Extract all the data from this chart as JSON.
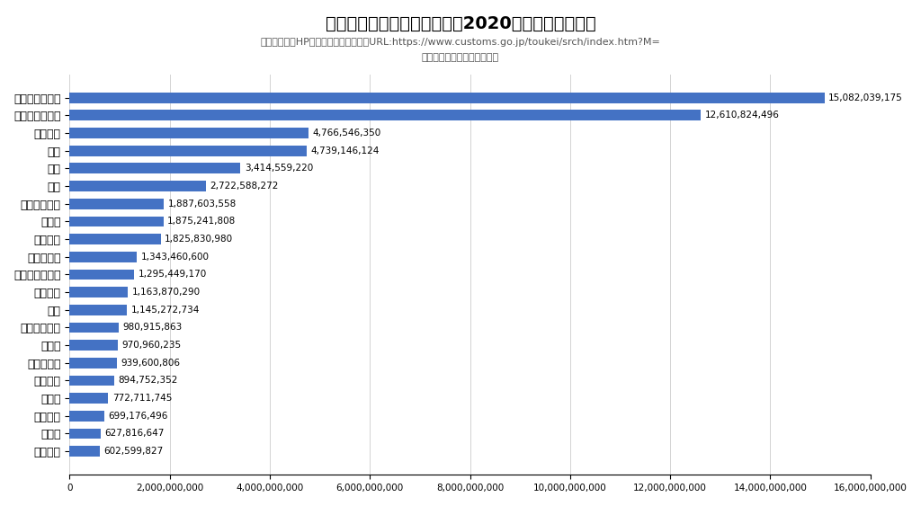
{
  "title": "日本の国地域別輸出額順位（2020年：単位：千円）",
  "subtitle1": "出典：財務省HP貿易統計国別総額表：URL:https://www.customs.go.jp/toukei/srch/index.htm?M=",
  "subtitle2": "数値データを筆者がグラフ化",
  "categories": [
    "フランス",
    "ロシア",
    "ベルギー",
    "カナダ",
    "メキシコ",
    "フィリピン",
    "インド",
    "インドネシア",
    "英国",
    "オランダ",
    "オーストラリア",
    "マレーシア",
    "ベトナム",
    "ドイツ",
    "シンガポール",
    "タイ",
    "香港",
    "台湾",
    "大韓民国",
    "アメリカ合衆国",
    "中華人民共和国"
  ],
  "values": [
    602599827,
    627816647,
    699176496,
    772711745,
    894752352,
    939600806,
    970960235,
    980915863,
    1145272734,
    1163870290,
    1295449170,
    1343460600,
    1825830980,
    1875241808,
    1887603558,
    2722588272,
    3414559220,
    4739146124,
    4766546350,
    12610824496,
    15082039175
  ],
  "bar_color": "#4472C4",
  "background_color": "#ffffff",
  "value_labels": [
    "602,599,827",
    "627,816,647",
    "699,176,496",
    "772,711,745",
    "894,752,352",
    "939,600,806",
    "970,960,235",
    "980,915,863",
    "1,145,272,734",
    "1,163,870,290",
    "1,295,449,170",
    "1,343,460,600",
    "1,825,830,980",
    "1,875,241,808",
    "1,887,603,558",
    "2,722,588,272",
    "3,414,559,220",
    "4,739,146,124",
    "4,766,546,350",
    "12,610,824,496",
    "15,082,039,175"
  ],
  "xlim": [
    0,
    16000000000
  ],
  "xtick_values": [
    0,
    2000000000,
    4000000000,
    6000000000,
    8000000000,
    10000000000,
    12000000000,
    14000000000,
    16000000000
  ],
  "xtick_labels": [
    "0",
    "2,000,000,000",
    "4,000,000,000",
    "6,000,000,000",
    "8,000,000,000",
    "10,000,000,000",
    "12,000,000,000",
    "14,000,000,000",
    "16,000,000,000"
  ]
}
